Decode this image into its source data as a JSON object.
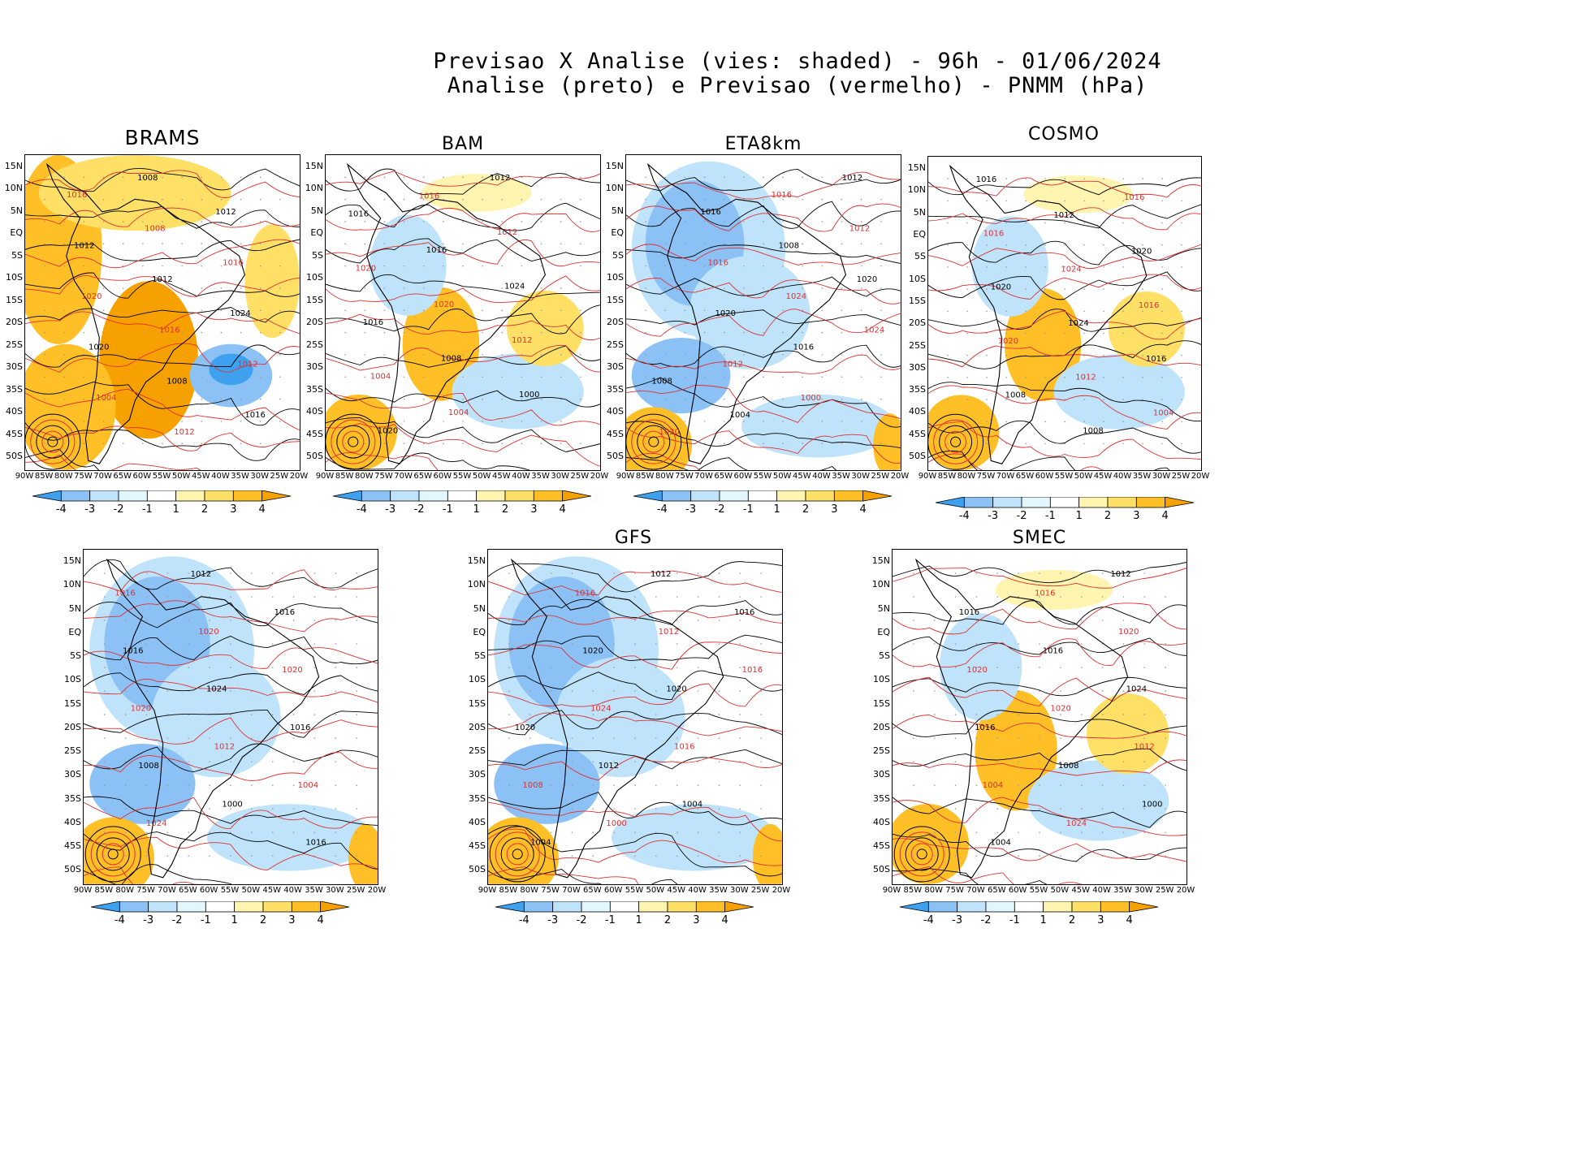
{
  "header": {
    "title_line1": "Previsao X Analise (vies: shaded) - 96h - 01/06/2024",
    "title_line2": "Analise (preto) e Previsao (vermelho) - PNMM (hPa)"
  },
  "axes": {
    "lat_labels": [
      "15N",
      "10N",
      "5N",
      "EQ",
      "5S",
      "10S",
      "15S",
      "20S",
      "25S",
      "30S",
      "35S",
      "40S",
      "45S",
      "50S"
    ],
    "lon_labels": [
      "90W",
      "85W",
      "80W",
      "75W",
      "70W",
      "65W",
      "60W",
      "55W",
      "50W",
      "45W",
      "40W",
      "35W",
      "30W",
      "25W",
      "20W"
    ]
  },
  "colorbar": {
    "labels": [
      "-4",
      "-3",
      "-2",
      "-1",
      "1",
      "2",
      "3",
      "4"
    ],
    "colors": [
      "#3ea1f0",
      "#8cc1f6",
      "#bfe3fa",
      "#e2f7fd",
      "#ffffff",
      "#fff5b0",
      "#ffe066",
      "#ffbf26",
      "#f7a100"
    ]
  },
  "colors": {
    "analysis_contour": "#000000",
    "forecast_contour": "#e03030",
    "grid_dots": "#9a9a9a"
  },
  "panels": [
    {
      "name": "BRAMS",
      "title": "BRAMS",
      "bias": "warm"
    },
    {
      "name": "BAM",
      "title": "BAM",
      "bias": "mixed"
    },
    {
      "name": "ETA8km",
      "title": "ETA8km",
      "bias": "cold"
    },
    {
      "name": "COSMO",
      "title": "COSMO",
      "bias": "mixed"
    },
    {
      "name": "UNNAMED",
      "title": "",
      "bias": "cold"
    },
    {
      "name": "GFS",
      "title": "GFS",
      "bias": "cold"
    },
    {
      "name": "SMEC",
      "title": "SMEC",
      "bias": "mixed"
    }
  ],
  "isobar_labels": {
    "BRAMS": [
      "1008",
      "1016",
      "1012",
      "1008",
      "1012",
      "1016",
      "1012",
      "1020",
      "1024",
      "1016",
      "1020",
      "1012",
      "1008",
      "1004",
      "1016",
      "1012"
    ],
    "BAM": [
      "1012",
      "1016",
      "1016",
      "1012",
      "1016",
      "1020",
      "1024",
      "1020",
      "1016",
      "1012",
      "1008",
      "1004",
      "1000",
      "1004",
      "1020"
    ],
    "ETA8km": [
      "1012",
      "1016",
      "1016",
      "1012",
      "1008",
      "1016",
      "1020",
      "1024",
      "1020",
      "1024",
      "1016",
      "1012",
      "1008",
      "1000",
      "1004",
      "1020"
    ],
    "COSMO": [
      "1016",
      "1016",
      "1012",
      "1016",
      "1020",
      "1024",
      "1020",
      "1016",
      "1024",
      "1020",
      "1016",
      "1012",
      "1008",
      "1004",
      "1008"
    ],
    "UNNAMED": [
      "1012",
      "1016",
      "1016",
      "1020",
      "1016",
      "1020",
      "1024",
      "1020",
      "1016",
      "1012",
      "1008",
      "1004",
      "1000",
      "1024",
      "1016"
    ],
    "GFS": [
      "1012",
      "1016",
      "1016",
      "1012",
      "1020",
      "1016",
      "1020",
      "1024",
      "1020",
      "1016",
      "1012",
      "1008",
      "1004",
      "1000",
      "1004"
    ],
    "SMEC": [
      "1012",
      "1016",
      "1016",
      "1020",
      "1016",
      "1020",
      "1024",
      "1020",
      "1016",
      "1012",
      "1008",
      "1004",
      "1000",
      "1024",
      "1004"
    ]
  }
}
